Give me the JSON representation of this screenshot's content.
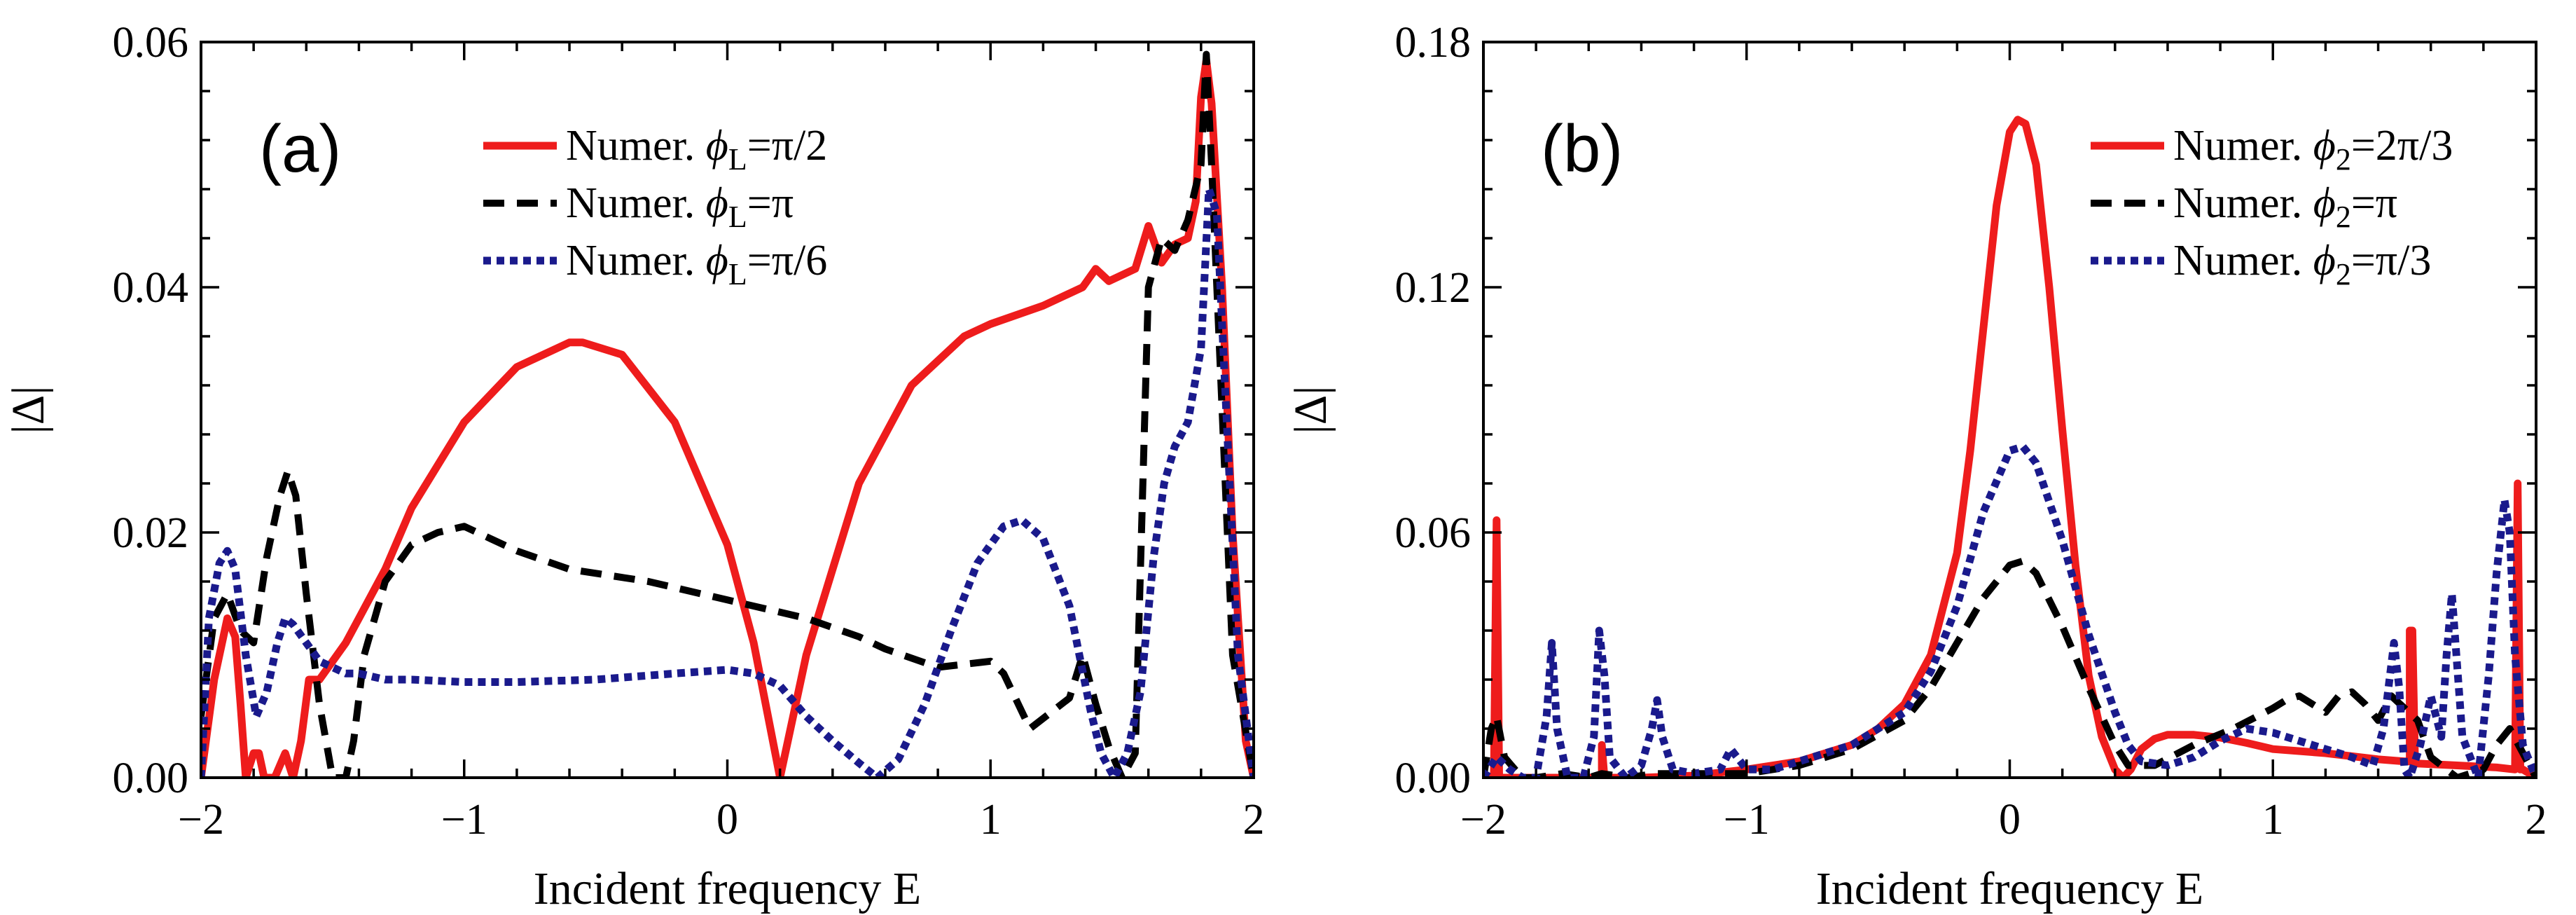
{
  "chart_data": [
    {
      "type": "line",
      "panel_label": "(a)",
      "xlabel": "Incident frequency E",
      "ylabel": "|Δ|",
      "xlim": [
        -2,
        2
      ],
      "ylim": [
        0,
        0.06
      ],
      "xticks": [
        -2,
        -1,
        0,
        1,
        2
      ],
      "xtick_labels": [
        "−2",
        "−1",
        "0",
        "1",
        "2"
      ],
      "yticks": [
        0,
        0.02,
        0.04,
        0.06
      ],
      "ytick_labels": [
        "0.00",
        "0.02",
        "0.04",
        "0.06"
      ],
      "legend_position": "top-center",
      "series": [
        {
          "name": "Numer.",
          "param_symbol": "ϕ",
          "param_sub": "L",
          "param_value": "=π/2",
          "color": "#ee1c1c",
          "style": "solid",
          "x": [
            -2.0,
            -1.95,
            -1.9,
            -1.87,
            -1.85,
            -1.83,
            -1.8,
            -1.78,
            -1.76,
            -1.72,
            -1.68,
            -1.65,
            -1.62,
            -1.59,
            -1.55,
            -1.5,
            -1.45,
            -1.4,
            -1.3,
            -1.2,
            -1.0,
            -0.8,
            -0.6,
            -0.55,
            -0.4,
            -0.2,
            0.0,
            0.1,
            0.2,
            0.3,
            0.5,
            0.7,
            0.9,
            1.0,
            1.2,
            1.35,
            1.4,
            1.45,
            1.55,
            1.6,
            1.65,
            1.7,
            1.75,
            1.78,
            1.8,
            1.82,
            1.84,
            1.88,
            1.92,
            1.97,
            2.0
          ],
          "y": [
            0.0,
            0.008,
            0.013,
            0.0115,
            0.006,
            0.0,
            0.002,
            0.002,
            0.0,
            0.0,
            0.002,
            0.0,
            0.003,
            0.008,
            0.008,
            0.0095,
            0.011,
            0.013,
            0.017,
            0.022,
            0.029,
            0.0335,
            0.0355,
            0.0355,
            0.0345,
            0.029,
            0.019,
            0.011,
            0.0,
            0.01,
            0.024,
            0.032,
            0.036,
            0.037,
            0.0385,
            0.04,
            0.0415,
            0.0405,
            0.0415,
            0.045,
            0.042,
            0.0435,
            0.044,
            0.047,
            0.0555,
            0.0585,
            0.055,
            0.04,
            0.02,
            0.003,
            0.0
          ]
        },
        {
          "name": "Numer.",
          "param_symbol": "ϕ",
          "param_sub": "L",
          "param_value": "=π",
          "color": "#000000",
          "style": "dashed",
          "x": [
            -2.0,
            -1.95,
            -1.9,
            -1.85,
            -1.8,
            -1.75,
            -1.7,
            -1.67,
            -1.64,
            -1.6,
            -1.55,
            -1.5,
            -1.45,
            -1.42,
            -1.38,
            -1.3,
            -1.2,
            -1.1,
            -1.0,
            -0.9,
            -0.8,
            -0.6,
            -0.3,
            0.0,
            0.3,
            0.5,
            0.6,
            0.8,
            1.0,
            1.05,
            1.15,
            1.3,
            1.35,
            1.4,
            1.45,
            1.5,
            1.55,
            1.6,
            1.65,
            1.7,
            1.75,
            1.8,
            1.82,
            1.84,
            1.88,
            1.92,
            2.0
          ],
          "y": [
            0.005,
            0.013,
            0.015,
            0.012,
            0.011,
            0.018,
            0.023,
            0.025,
            0.023,
            0.015,
            0.006,
            0.0,
            0.0,
            0.003,
            0.01,
            0.016,
            0.019,
            0.02,
            0.0205,
            0.0195,
            0.0185,
            0.017,
            0.016,
            0.0145,
            0.013,
            0.0115,
            0.0105,
            0.009,
            0.0095,
            0.0085,
            0.004,
            0.0065,
            0.01,
            0.006,
            0.0025,
            0.0,
            0.002,
            0.04,
            0.044,
            0.043,
            0.0455,
            0.05,
            0.059,
            0.05,
            0.03,
            0.01,
            0.0
          ]
        },
        {
          "name": "Numer.",
          "param_symbol": "ϕ",
          "param_sub": "L",
          "param_value": "=π/6",
          "color": "#1a1a8c",
          "style": "dotted",
          "x": [
            -2.0,
            -1.97,
            -1.93,
            -1.9,
            -1.87,
            -1.83,
            -1.79,
            -1.75,
            -1.71,
            -1.68,
            -1.65,
            -1.6,
            -1.55,
            -1.5,
            -1.45,
            -1.4,
            -1.3,
            -1.2,
            -1.0,
            -0.8,
            -0.5,
            -0.2,
            0.0,
            0.1,
            0.2,
            0.3,
            0.4,
            0.5,
            0.57,
            0.65,
            0.75,
            0.85,
            0.95,
            1.05,
            1.12,
            1.2,
            1.3,
            1.38,
            1.42,
            1.47,
            1.52,
            1.57,
            1.62,
            1.66,
            1.7,
            1.75,
            1.8,
            1.83,
            1.86,
            1.9,
            1.94,
            2.0
          ],
          "y": [
            0.0,
            0.013,
            0.0175,
            0.0185,
            0.017,
            0.01,
            0.005,
            0.007,
            0.011,
            0.013,
            0.0125,
            0.011,
            0.0095,
            0.009,
            0.0085,
            0.0085,
            0.008,
            0.008,
            0.0078,
            0.0078,
            0.008,
            0.0085,
            0.0088,
            0.0085,
            0.0075,
            0.005,
            0.003,
            0.0012,
            0.0,
            0.0015,
            0.006,
            0.012,
            0.0175,
            0.0205,
            0.021,
            0.0195,
            0.014,
            0.0055,
            0.002,
            0.0,
            0.002,
            0.007,
            0.018,
            0.024,
            0.027,
            0.029,
            0.035,
            0.048,
            0.046,
            0.028,
            0.01,
            0.0
          ]
        }
      ]
    },
    {
      "type": "line",
      "panel_label": "(b)",
      "xlabel": "Incident frequency E",
      "ylabel": "|Δ|",
      "xlim": [
        -2,
        2
      ],
      "ylim": [
        0,
        0.18
      ],
      "xticks": [
        -2,
        -1,
        0,
        1,
        2
      ],
      "xtick_labels": [
        "−2",
        "−1",
        "0",
        "1",
        "2"
      ],
      "yticks": [
        0,
        0.06,
        0.12,
        0.18
      ],
      "ytick_labels": [
        "0.00",
        "0.06",
        "0.12",
        "0.18"
      ],
      "legend_position": "top-right",
      "series": [
        {
          "name": "Numer.",
          "param_symbol": "ϕ",
          "param_sub": "2",
          "param_value": "=2π/3",
          "color": "#ee1c1c",
          "style": "solid",
          "x": [
            -2.0,
            -1.96,
            -1.95,
            -1.95,
            -1.94,
            -1.93,
            -1.8,
            -1.6,
            -1.56,
            -1.55,
            -1.55,
            -1.54,
            -1.4,
            -1.2,
            -1.0,
            -0.8,
            -0.6,
            -0.5,
            -0.4,
            -0.3,
            -0.2,
            -0.15,
            -0.1,
            -0.05,
            0.0,
            0.03,
            0.06,
            0.1,
            0.15,
            0.2,
            0.25,
            0.3,
            0.35,
            0.4,
            0.43,
            0.46,
            0.5,
            0.55,
            0.6,
            0.7,
            0.8,
            0.9,
            1.0,
            1.2,
            1.4,
            1.5,
            1.52,
            1.52,
            1.53,
            1.54,
            1.7,
            1.85,
            1.92,
            1.93,
            1.93,
            1.94,
            1.95,
            2.0
          ],
          "y": [
            0.0,
            0.0,
            0.063,
            0.063,
            0.0,
            0.0,
            0.0,
            0.0,
            0.0,
            0.0,
            0.008,
            0.0,
            0.0,
            0.0005,
            0.002,
            0.004,
            0.008,
            0.012,
            0.018,
            0.03,
            0.055,
            0.08,
            0.11,
            0.14,
            0.158,
            0.161,
            0.16,
            0.15,
            0.12,
            0.085,
            0.052,
            0.025,
            0.01,
            0.002,
            0.0,
            0.002,
            0.007,
            0.0095,
            0.0105,
            0.0105,
            0.0098,
            0.0085,
            0.007,
            0.006,
            0.0045,
            0.004,
            0.004,
            0.036,
            0.036,
            0.0035,
            0.003,
            0.0025,
            0.002,
            0.072,
            0.072,
            0.002,
            0.002,
            0.0
          ]
        },
        {
          "name": "Numer.",
          "param_symbol": "ϕ",
          "param_sub": "2",
          "param_value": "=π",
          "color": "#000000",
          "style": "dashed",
          "x": [
            -2.0,
            -1.97,
            -1.95,
            -1.92,
            -1.88,
            -1.85,
            -1.8,
            -1.7,
            -1.6,
            -1.55,
            -1.45,
            -1.35,
            -1.2,
            -1.0,
            -0.8,
            -0.6,
            -0.4,
            -0.3,
            -0.2,
            -0.1,
            0.0,
            0.05,
            0.1,
            0.2,
            0.3,
            0.4,
            0.45,
            0.55,
            0.7,
            0.85,
            1.0,
            1.05,
            1.1,
            1.15,
            1.2,
            1.25,
            1.3,
            1.35,
            1.4,
            1.45,
            1.55,
            1.6,
            1.7,
            1.8,
            1.85,
            1.9,
            1.95,
            2.0
          ],
          "y": [
            0.0,
            0.012,
            0.015,
            0.005,
            0.002,
            0.0,
            0.0,
            0.001,
            0.0,
            0.001,
            0.0,
            0.001,
            0.001,
            0.001,
            0.003,
            0.007,
            0.014,
            0.022,
            0.033,
            0.044,
            0.052,
            0.053,
            0.05,
            0.037,
            0.022,
            0.008,
            0.003,
            0.003,
            0.008,
            0.012,
            0.017,
            0.019,
            0.02,
            0.018,
            0.016,
            0.02,
            0.021,
            0.018,
            0.014,
            0.02,
            0.014,
            0.005,
            0.0,
            0.002,
            0.008,
            0.012,
            0.006,
            0.0
          ]
        },
        {
          "name": "Numer.",
          "param_symbol": "ϕ",
          "param_sub": "2",
          "param_value": "=π/3",
          "color": "#1a1a8c",
          "style": "dotted",
          "x": [
            -2.0,
            -1.95,
            -1.9,
            -1.85,
            -1.8,
            -1.76,
            -1.74,
            -1.72,
            -1.68,
            -1.62,
            -1.58,
            -1.56,
            -1.54,
            -1.52,
            -1.46,
            -1.4,
            -1.36,
            -1.34,
            -1.32,
            -1.28,
            -1.2,
            -1.1,
            -1.06,
            -1.0,
            -0.9,
            -0.8,
            -0.6,
            -0.4,
            -0.3,
            -0.2,
            -0.1,
            0.0,
            0.05,
            0.1,
            0.2,
            0.3,
            0.4,
            0.45,
            0.5,
            0.6,
            0.7,
            0.8,
            0.9,
            1.0,
            1.1,
            1.2,
            1.3,
            1.38,
            1.42,
            1.46,
            1.48,
            1.5,
            1.52,
            1.56,
            1.6,
            1.64,
            1.66,
            1.68,
            1.72,
            1.78,
            1.82,
            1.85,
            1.88,
            1.9,
            1.92,
            1.95,
            2.0
          ],
          "y": [
            0.0,
            0.005,
            0.002,
            0.0,
            0.0,
            0.015,
            0.033,
            0.012,
            0.0,
            0.0,
            0.01,
            0.036,
            0.025,
            0.005,
            0.0,
            0.003,
            0.012,
            0.019,
            0.01,
            0.002,
            0.001,
            0.002,
            0.007,
            0.002,
            0.002,
            0.004,
            0.008,
            0.016,
            0.026,
            0.042,
            0.065,
            0.08,
            0.081,
            0.077,
            0.058,
            0.035,
            0.016,
            0.008,
            0.004,
            0.003,
            0.005,
            0.009,
            0.012,
            0.011,
            0.009,
            0.007,
            0.005,
            0.003,
            0.012,
            0.033,
            0.022,
            0.002,
            0.0,
            0.008,
            0.02,
            0.01,
            0.03,
            0.045,
            0.01,
            0.0,
            0.025,
            0.05,
            0.068,
            0.06,
            0.03,
            0.008,
            0.0
          ]
        }
      ]
    }
  ]
}
